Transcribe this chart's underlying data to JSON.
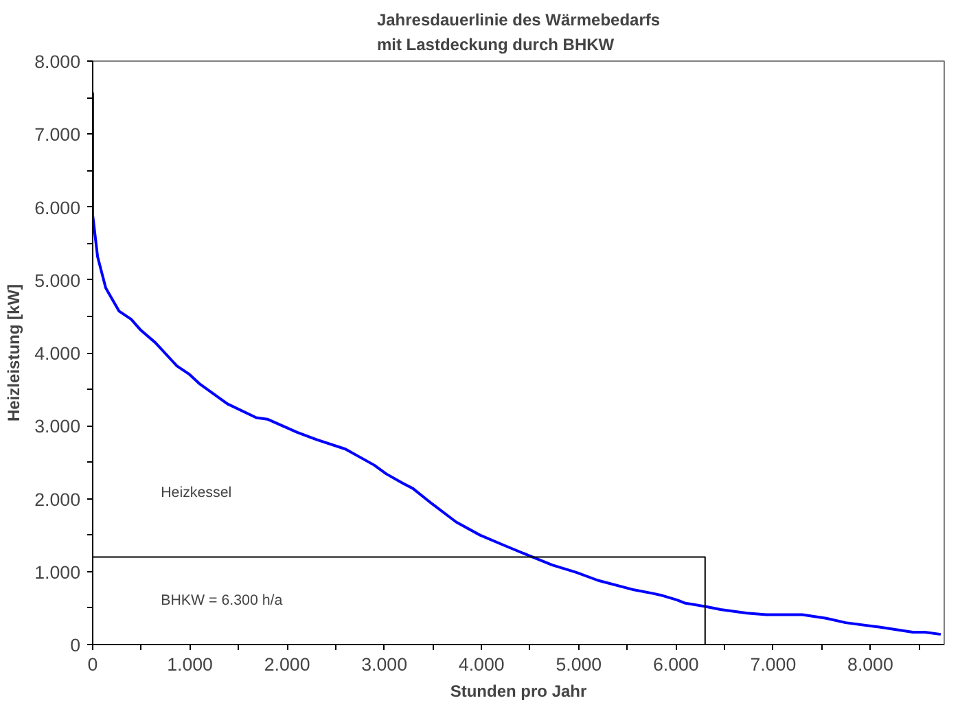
{
  "chart_data": {
    "type": "line",
    "title": "Jahresdauerlinie des Wärmebedarfs\nmit Lastdeckung durch BHKW",
    "xlabel": "Stunden pro Jahr",
    "ylabel": "Heizleistung [kW]",
    "xlim": [
      0,
      8760
    ],
    "ylim": [
      0,
      8000
    ],
    "xticks": [
      {
        "value": 0,
        "label": "0"
      },
      {
        "value": 1000,
        "label": "1.000"
      },
      {
        "value": 2000,
        "label": "2.000"
      },
      {
        "value": 3000,
        "label": "3.000"
      },
      {
        "value": 4000,
        "label": "4.000"
      },
      {
        "value": 5000,
        "label": "5.000"
      },
      {
        "value": 6000,
        "label": "6.000"
      },
      {
        "value": 7000,
        "label": "7.000"
      },
      {
        "value": 8000,
        "label": "8.000"
      },
      {
        "value": 500,
        "label": null
      },
      {
        "value": 1500,
        "label": null
      },
      {
        "value": 2500,
        "label": null
      },
      {
        "value": 3500,
        "label": null
      },
      {
        "value": 4500,
        "label": null
      },
      {
        "value": 5500,
        "label": null
      },
      {
        "value": 6500,
        "label": null
      },
      {
        "value": 7500,
        "label": null
      },
      {
        "value": 8500,
        "label": null
      }
    ],
    "yticks": [
      {
        "value": 0,
        "label": "0"
      },
      {
        "value": 1000,
        "label": "1.000"
      },
      {
        "value": 2000,
        "label": "2.000"
      },
      {
        "value": 3000,
        "label": "3.000"
      },
      {
        "value": 4000,
        "label": "4.000"
      },
      {
        "value": 5000,
        "label": "5.000"
      },
      {
        "value": 6000,
        "label": "6.000"
      },
      {
        "value": 7000,
        "label": "7.000"
      },
      {
        "value": 8000,
        "label": "8.000"
      },
      {
        "value": 500,
        "label": null
      },
      {
        "value": 1500,
        "label": null
      },
      {
        "value": 2500,
        "label": null
      },
      {
        "value": 3500,
        "label": null
      },
      {
        "value": 4500,
        "label": null
      },
      {
        "value": 5500,
        "label": null
      },
      {
        "value": 6500,
        "label": null
      },
      {
        "value": 7500,
        "label": null
      }
    ],
    "grid": false,
    "marker": "none",
    "line_style": "solid",
    "series": [
      {
        "color": "#0000ff",
        "x": [
          0,
          0,
          50,
          134,
          272,
          396,
          495,
          644,
          866,
          990,
          1104,
          1386,
          1683,
          1797,
          2104,
          2302,
          2600,
          2896,
          3020,
          3193,
          3294,
          3491,
          3739,
          3985,
          4233,
          4505,
          4727,
          4975,
          5197,
          5568,
          5766,
          5865,
          6013,
          6088,
          6310,
          6459,
          6730,
          6929,
          7300,
          7546,
          7745,
          8091,
          8437,
          8561,
          8724
        ],
        "values": [
          7570,
          5890,
          5320,
          4890,
          4570,
          4460,
          4310,
          4140,
          3820,
          3710,
          3570,
          3300,
          3110,
          3090,
          2910,
          2810,
          2680,
          2460,
          2340,
          2210,
          2140,
          1930,
          1680,
          1500,
          1360,
          1210,
          1090,
          990,
          880,
          750,
          700,
          670,
          610,
          570,
          520,
          480,
          430,
          410,
          410,
          360,
          300,
          240,
          170,
          170,
          140
        ]
      },
      {
        "color": "#000000",
        "x": [
          0,
          6300,
          6300
        ],
        "values": [
          1200,
          1200,
          0
        ]
      }
    ],
    "annotations": [
      "Heizkessel",
      "BHKW = 6.300 h/a"
    ]
  }
}
